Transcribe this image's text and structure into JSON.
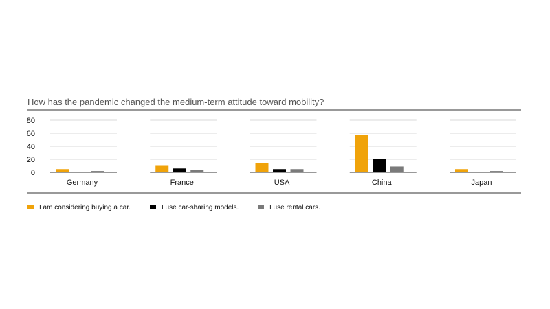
{
  "chart_data": {
    "type": "bar",
    "title": "How has the pandemic changed the medium-term attitude toward mobility?",
    "xlabel": "",
    "ylabel": "",
    "categories": [
      "Germany",
      "France",
      "USA",
      "China",
      "Japan"
    ],
    "series": [
      {
        "name": "I am considering buying a car.",
        "color": "#f0a30a",
        "values": [
          5,
          10,
          14,
          57,
          5
        ]
      },
      {
        "name": "I use car-sharing models.",
        "color": "#000000",
        "values": [
          1,
          6,
          5,
          21,
          1
        ]
      },
      {
        "name": "I use rental cars.",
        "color": "#7a7a7a",
        "values": [
          2,
          4,
          5,
          9,
          2
        ]
      }
    ],
    "ylim": [
      0,
      80
    ],
    "yticks": [
      "0",
      "20",
      "40",
      "60",
      "80"
    ],
    "grid": true,
    "legend": "bottom-left"
  }
}
